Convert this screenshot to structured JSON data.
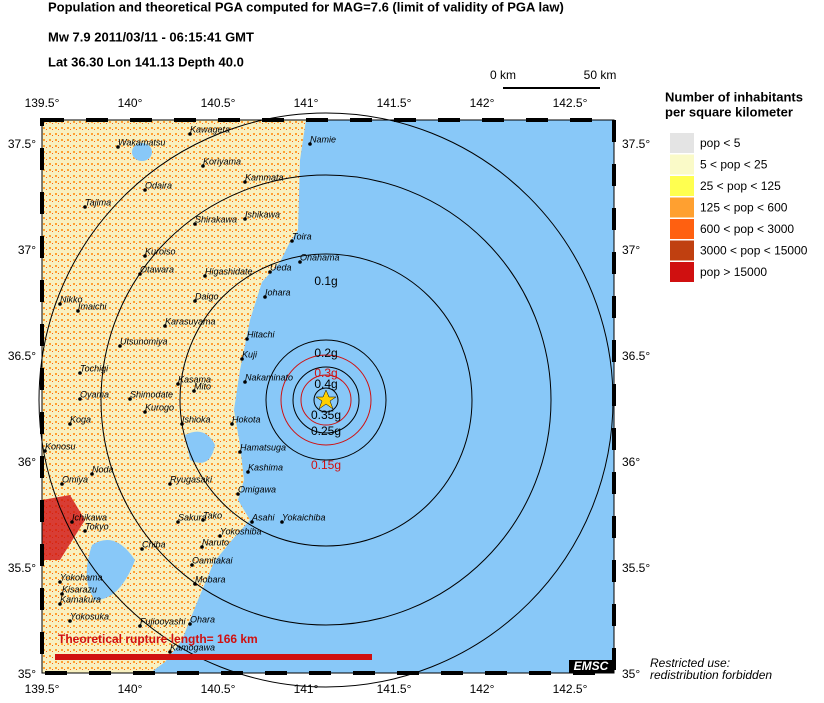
{
  "header": {
    "title": "Population and theoretical PGA computed for MAG=7.6 (limit of validity of PGA law)",
    "event": "Mw 7.9  2011/03/11 - 06:15:41 GMT",
    "location": "Lat 36.30    Lon 141.13    Depth  40.0",
    "scale": {
      "left": "0 km",
      "right": "50 km"
    }
  },
  "map": {
    "lon_ticks": [
      "139.5°",
      "140°",
      "140.5°",
      "141°",
      "141.5°",
      "142°",
      "142.5°"
    ],
    "lat_ticks": [
      "37.5°",
      "37°",
      "36.5°",
      "36°",
      "35.5°",
      "35°"
    ],
    "cities": [
      "Kawageta",
      "Wakamatsu",
      "Namie",
      "Koriyama",
      "Kammata",
      "Odaira",
      "Tajima",
      "Ishikawa",
      "Shirakawa",
      "Toira",
      "Kuroiso",
      "Onahama",
      "Ueda",
      "Otawara",
      "Higashidate",
      "Iohara",
      "Daigo",
      "Nikko",
      "Imaichi",
      "Karasuyama",
      "Hitachi",
      "Utsunomiya",
      "Kuji",
      "Tochigi",
      "Kasama",
      "Nakaminato",
      "Mito",
      "Oyama",
      "Shimodate",
      "Kurogo",
      "Koga",
      "Ishioka",
      "Hokota",
      "Konosu",
      "Hamatsuga",
      "Noda",
      "Omiya",
      "Kashima",
      "Ryugasaki",
      "Omigawa",
      "Ichikawa",
      "Sakura",
      "Tako",
      "Asahi",
      "Yokaichiba",
      "Tokyo",
      "Yokoshiba",
      "Chiba",
      "Naruto",
      "Oamitakai",
      "Yokohama",
      "Mobara",
      "Kisarazu",
      "Kamakura",
      "Yokosuka",
      "Ohara",
      "Fujiooyashi",
      "Kamogawa"
    ],
    "pga_labels": [
      "0.1g",
      "0.2g",
      "0.3g",
      "0.4g",
      "0.35g",
      "0.25g",
      "0.15g"
    ],
    "rupture": "Theoretical rupture length=    166 km",
    "badge": "EMSC",
    "restriction": [
      "Restricted use:",
      "redistribution forbidden"
    ]
  },
  "legend": {
    "title": [
      "Number of inhabitants",
      "per square kilometer"
    ],
    "items": [
      {
        "label": "pop < 5",
        "color": "#e4e4e4"
      },
      {
        "label": "5 < pop < 25",
        "color": "#fafac8"
      },
      {
        "label": "25 < pop < 125",
        "color": "#ffff50"
      },
      {
        "label": "125 < pop < 600",
        "color": "#ffa030"
      },
      {
        "label": "600 < pop < 3000",
        "color": "#ff6010"
      },
      {
        "label": "3000 < pop < 15000",
        "color": "#c04010"
      },
      {
        "label": "pop > 15000",
        "color": "#d01010"
      }
    ]
  }
}
